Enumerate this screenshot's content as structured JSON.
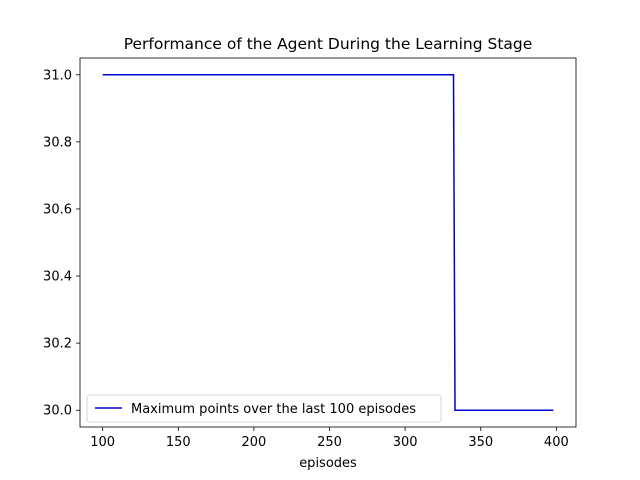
{
  "chart_data": {
    "type": "line",
    "title": "Performance of the Agent During the Learning Stage",
    "xlabel": "episodes",
    "ylabel": "",
    "xlim": [
      85,
      413
    ],
    "ylim": [
      29.95,
      31.05
    ],
    "xticks": [
      100,
      150,
      200,
      250,
      300,
      350,
      400
    ],
    "yticks": [
      30.0,
      30.2,
      30.4,
      30.6,
      30.8,
      31.0
    ],
    "ytick_labels": [
      "30.0",
      "30.2",
      "30.4",
      "30.6",
      "30.8",
      "31.0"
    ],
    "grid": false,
    "legend": {
      "placement": "lower-left",
      "entries": [
        "Maximum points over the last 100 episodes"
      ]
    },
    "series": [
      {
        "name": "Maximum points over the last 100 episodes",
        "color": "#0000cc",
        "x": [
          100,
          332,
          333,
          398
        ],
        "y": [
          31.0,
          31.0,
          30.0,
          30.0
        ]
      }
    ]
  }
}
